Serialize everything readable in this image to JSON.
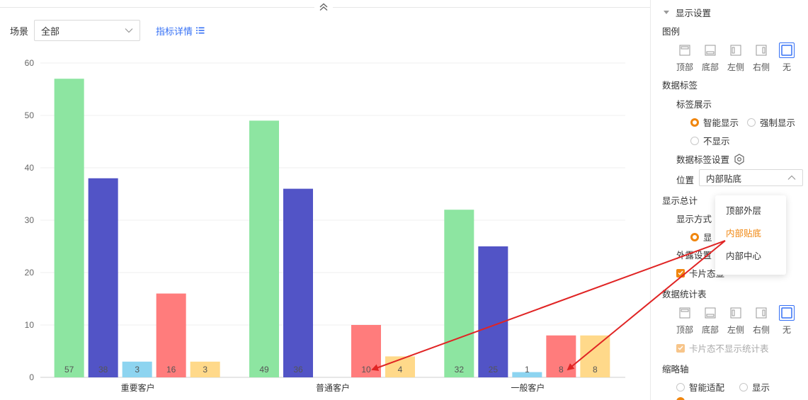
{
  "filter": {
    "label": "场景",
    "value": "全部",
    "detail_link": "指标详情"
  },
  "chart_data": {
    "type": "bar",
    "categories": [
      "重要客户",
      "普通客户",
      "一般客户"
    ],
    "series": [
      {
        "values": [
          57,
          49,
          32
        ],
        "color": "#8de5a1"
      },
      {
        "values": [
          38,
          36,
          25
        ],
        "color": "#5254c6"
      },
      {
        "values": [
          3,
          0,
          1
        ],
        "color": "#8dd4f0"
      },
      {
        "values": [
          16,
          10,
          8
        ],
        "color": "#ff7c7c"
      },
      {
        "values": [
          3,
          4,
          8
        ],
        "color": "#ffd98a"
      }
    ],
    "data_labels": [
      [
        "57",
        "38",
        "3",
        "16",
        "3"
      ],
      [
        "49",
        "36",
        "",
        "10",
        "4"
      ],
      [
        "32",
        "25",
        "1",
        "8",
        "8"
      ]
    ],
    "yticks": [
      "0",
      "10",
      "20",
      "30",
      "40",
      "50",
      "60"
    ],
    "ylim": [
      0,
      60
    ],
    "grid": true,
    "legend": "none"
  },
  "panel": {
    "display_settings": "显示设置",
    "legend_title": "图例",
    "legend_options": [
      {
        "label": "顶部",
        "icon": "legend-top-icon"
      },
      {
        "label": "底部",
        "icon": "legend-bottom-icon"
      },
      {
        "label": "左侧",
        "icon": "legend-left-icon"
      },
      {
        "label": "右侧",
        "icon": "legend-right-icon"
      },
      {
        "label": "无",
        "icon": "legend-none-icon"
      }
    ],
    "data_label_title": "数据标签",
    "label_display": "标签展示",
    "smart_display": "智能显示",
    "force_display": "强制显示",
    "no_display": "不显示",
    "label_settings": "数据标签设置",
    "position_label": "位置",
    "position_value": "内部贴底",
    "show_total": "显示总计",
    "display_mode": "显示方式",
    "display_mode_radio": "显",
    "exposure_settings": "外露设置",
    "card_state": "卡片态显",
    "stats_table_title": "数据统计表",
    "table_options": [
      {
        "label": "顶部",
        "icon": "table-top-icon"
      },
      {
        "label": "底部",
        "icon": "table-bottom-icon"
      },
      {
        "label": "左侧",
        "icon": "table-left-icon"
      },
      {
        "label": "右侧",
        "icon": "table-right-icon"
      },
      {
        "label": "无",
        "icon": "table-none-icon"
      }
    ],
    "card_no_stats": "卡片态不显示统计表",
    "zoom_axis": "缩略轴",
    "smart_fit": "智能适配",
    "show": "显示"
  },
  "dropdown": {
    "items": [
      "顶部外层",
      "内部贴底",
      "内部中心"
    ],
    "selected": "内部贴底"
  },
  "colors": {
    "accent": "#f0860e",
    "link": "#3570f5",
    "annotation": "#e02424"
  }
}
